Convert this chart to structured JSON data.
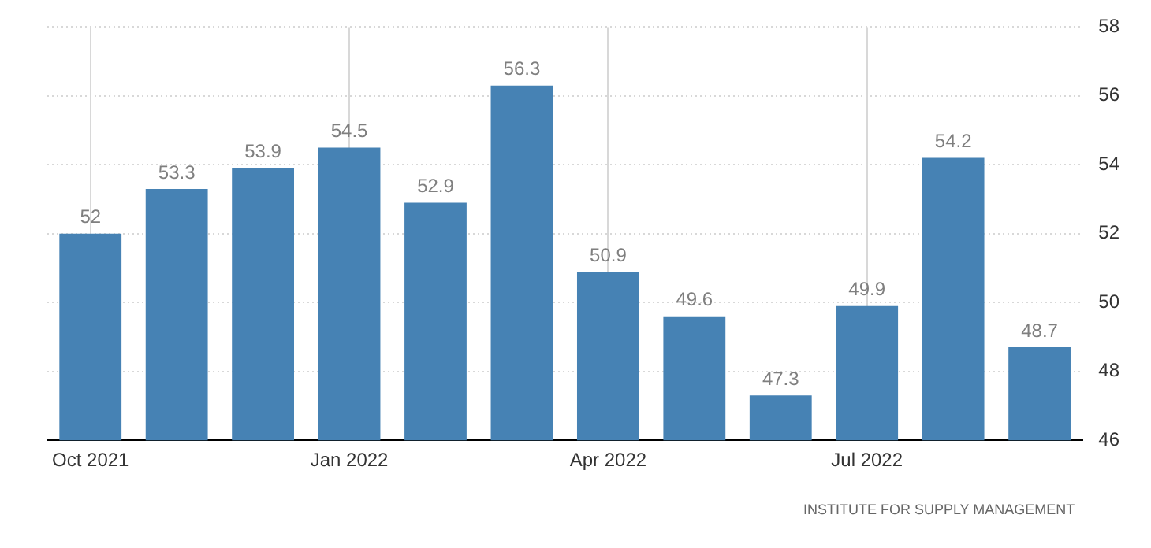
{
  "chart_data": {
    "type": "bar",
    "categories": [
      "Oct 2021",
      null,
      null,
      "Jan 2022",
      null,
      null,
      "Apr 2022",
      null,
      null,
      "Jul 2022",
      null,
      null
    ],
    "values": [
      52,
      53.3,
      53.9,
      54.5,
      52.9,
      56.3,
      50.9,
      49.6,
      47.3,
      49.9,
      54.2,
      48.7
    ],
    "color": "#4682b4",
    "ylim": [
      46,
      58
    ],
    "yticks": [
      46,
      48,
      50,
      52,
      54,
      56,
      58
    ],
    "grid": true,
    "data_labels": true,
    "annotations": [
      "INSTITUTE FOR SUPPLY MANAGEMENT"
    ]
  }
}
